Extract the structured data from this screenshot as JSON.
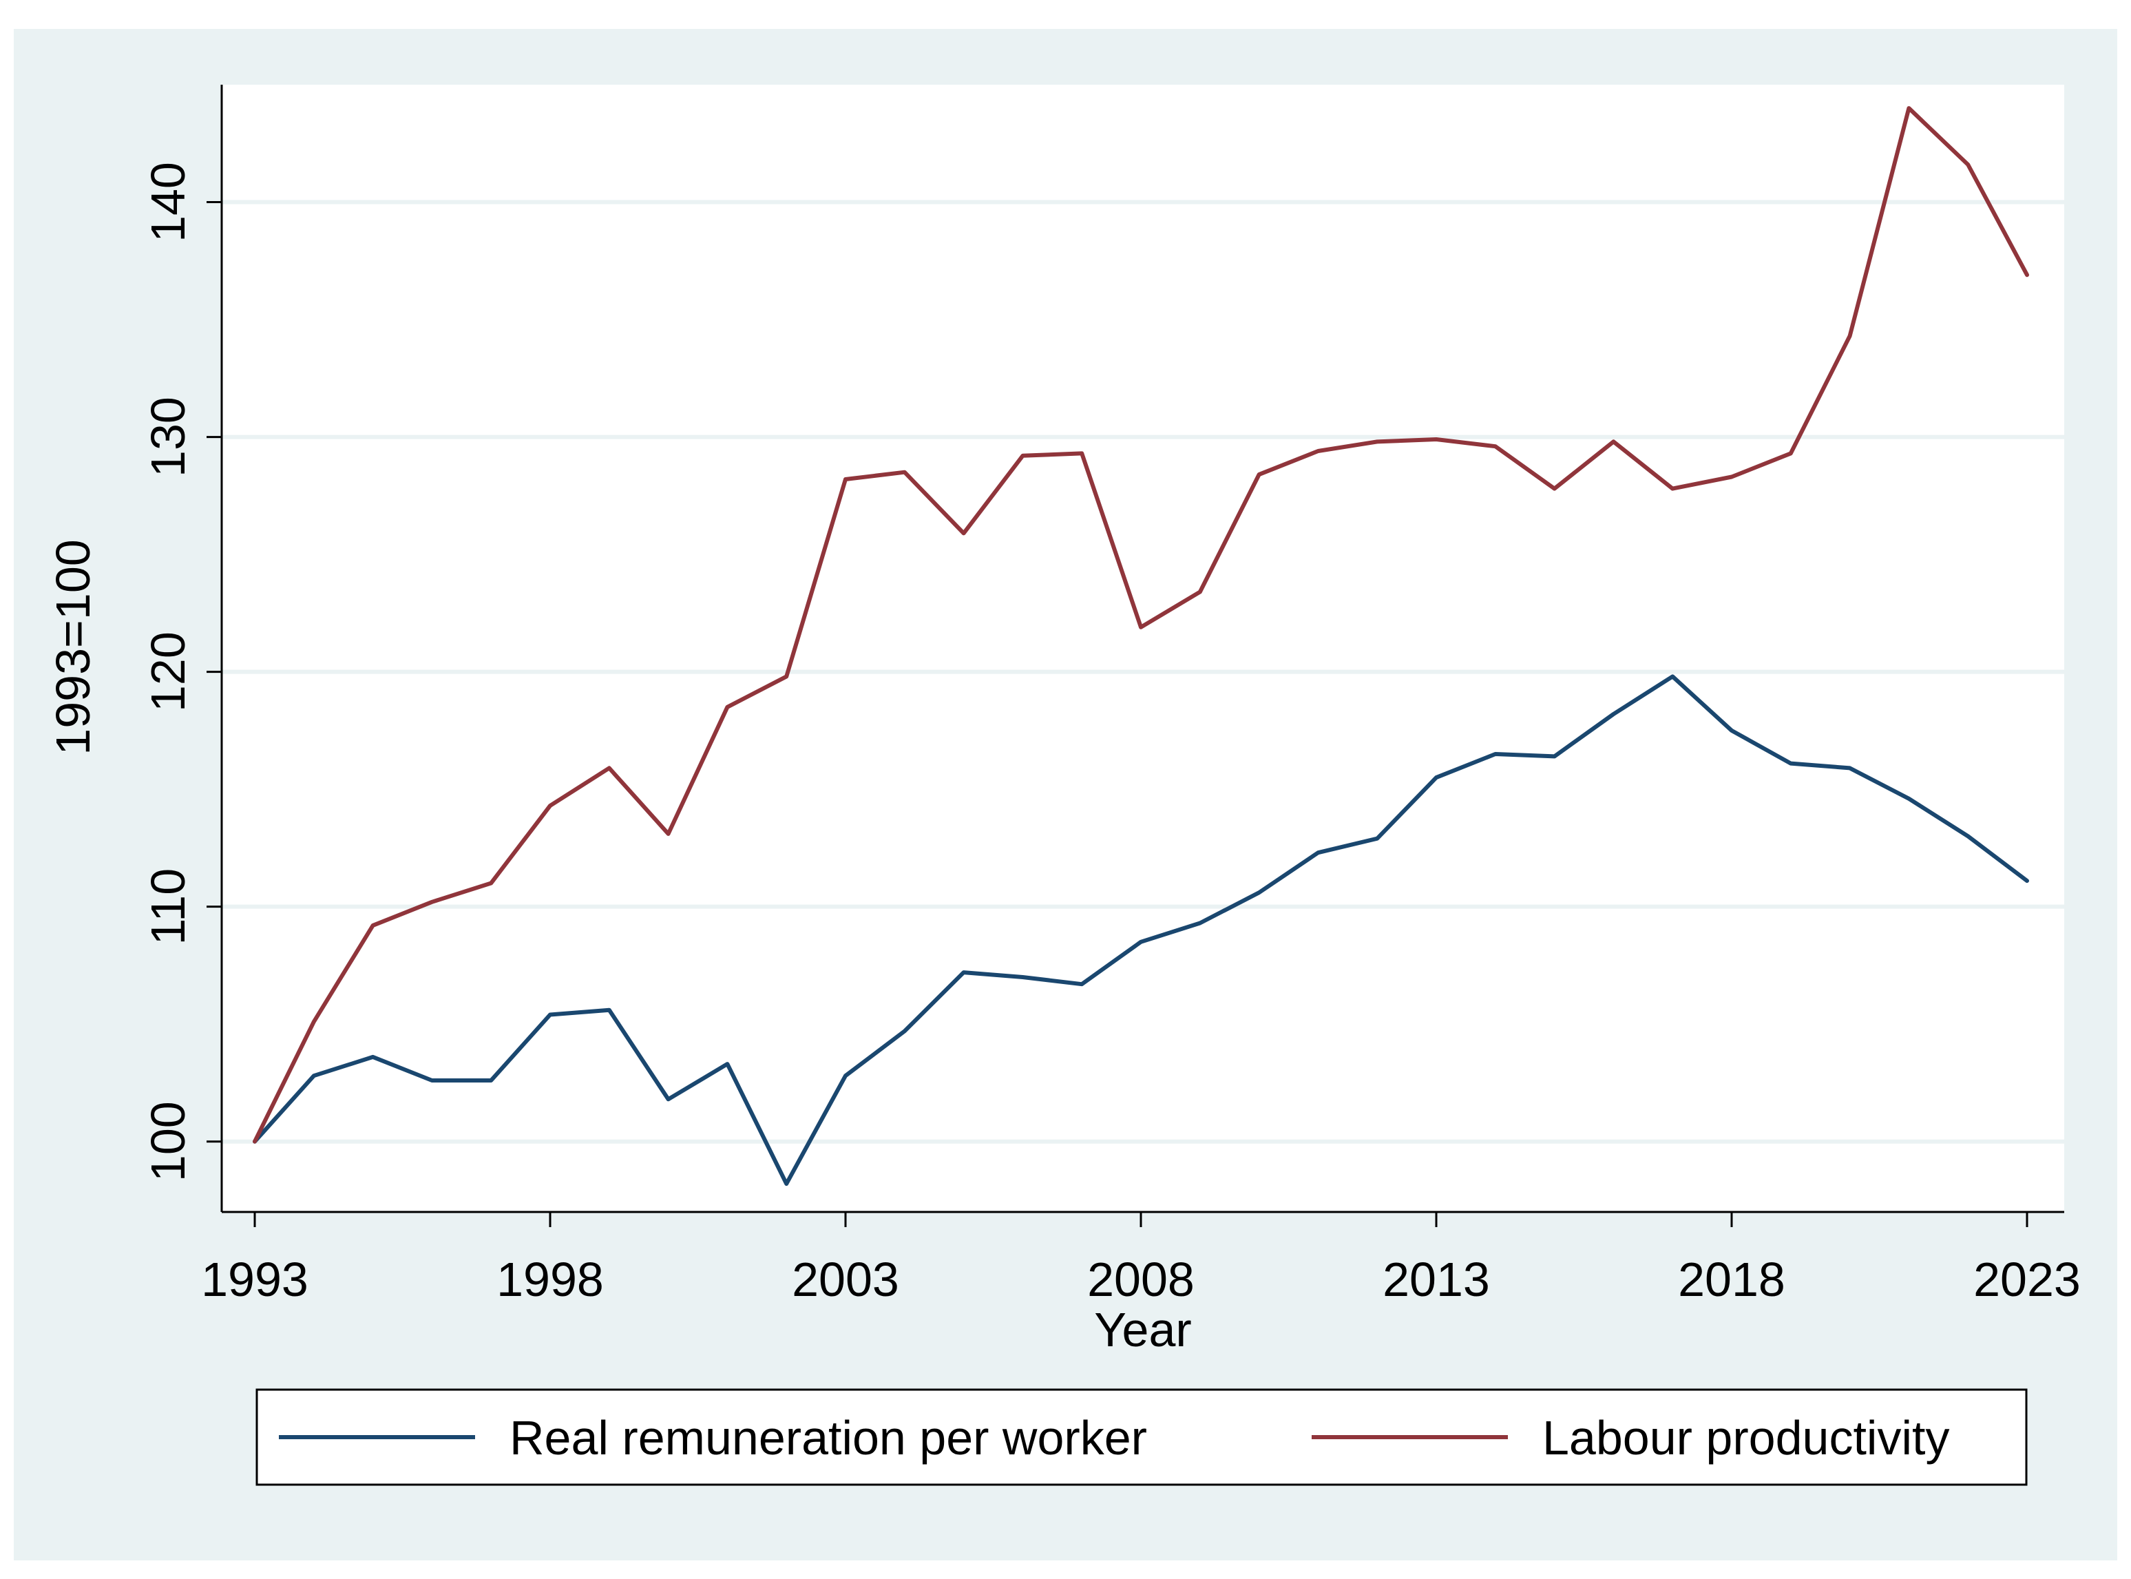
{
  "chart_data": {
    "type": "line",
    "title": "",
    "xlabel": "Year",
    "ylabel": "1993=100",
    "xlim": [
      1993,
      2023
    ],
    "ylim": [
      97,
      145
    ],
    "x_ticks": [
      1993,
      1998,
      2003,
      2008,
      2013,
      2018,
      2023
    ],
    "y_ticks": [
      100,
      110,
      120,
      130,
      140
    ],
    "grid": true,
    "legend_position": "bottom",
    "x": [
      1993,
      1994,
      1995,
      1996,
      1997,
      1998,
      1999,
      2000,
      2001,
      2002,
      2003,
      2004,
      2005,
      2006,
      2007,
      2008,
      2009,
      2010,
      2011,
      2012,
      2013,
      2014,
      2015,
      2016,
      2017,
      2018,
      2019,
      2020,
      2021,
      2022,
      2023
    ],
    "series": [
      {
        "name": "Real remuneration per worker",
        "color": "#1a476f",
        "values": [
          100.0,
          102.8,
          103.6,
          102.6,
          102.6,
          105.4,
          105.6,
          101.8,
          103.3,
          98.2,
          102.8,
          104.7,
          107.2,
          107.0,
          106.7,
          108.5,
          109.3,
          110.6,
          112.3,
          112.9,
          115.5,
          116.5,
          116.4,
          118.2,
          119.8,
          117.5,
          116.1,
          115.9,
          114.6,
          113.0,
          111.1
        ]
      },
      {
        "name": "Labour productivity",
        "color": "#90353b",
        "values": [
          100.0,
          105.1,
          109.2,
          110.2,
          111.0,
          114.3,
          115.9,
          113.1,
          118.5,
          119.8,
          128.2,
          128.5,
          125.9,
          129.2,
          129.3,
          121.9,
          123.4,
          128.4,
          129.4,
          129.8,
          129.9,
          129.6,
          127.8,
          129.8,
          127.8,
          128.3,
          129.3,
          134.3,
          144.0,
          141.6,
          136.9
        ]
      }
    ]
  },
  "colors": {
    "outer_background": "#eaf2f3",
    "plot_background": "#ffffff",
    "grid": "#eaf2f3"
  }
}
